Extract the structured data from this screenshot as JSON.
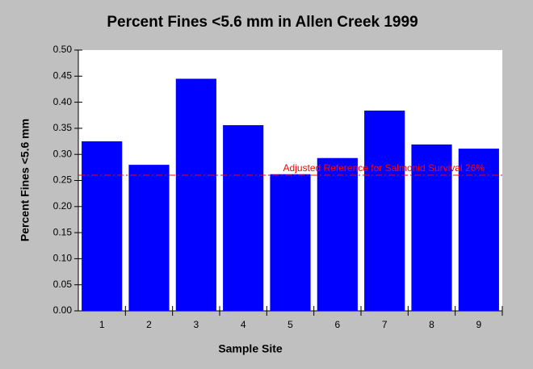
{
  "chart_data": {
    "type": "bar",
    "title": "Percent Fines <5.6 mm in Allen Creek 1999",
    "x_label": "Sample Site",
    "y_label": "Percent Fines <5.6 mm",
    "categories": [
      "1",
      "2",
      "3",
      "4",
      "5",
      "6",
      "7",
      "8",
      "9"
    ],
    "values": [
      0.325,
      0.28,
      0.445,
      0.356,
      0.262,
      0.293,
      0.384,
      0.319,
      0.311
    ],
    "color": "#0000ff",
    "ylim": [
      0,
      0.5
    ],
    "yticks": [
      {
        "value": 0,
        "label": "0.00"
      },
      {
        "value": 0.05,
        "label": "0.05"
      },
      {
        "value": 0.1,
        "label": "0.10"
      },
      {
        "value": 0.15,
        "label": "0.15"
      },
      {
        "value": 0.2,
        "label": "0.20"
      },
      {
        "value": 0.25,
        "label": "0.25"
      },
      {
        "value": 0.3,
        "label": "0.30"
      },
      {
        "value": 0.35,
        "label": "0.35"
      },
      {
        "value": 0.4,
        "label": "0.40"
      },
      {
        "value": 0.45,
        "label": "0.45"
      },
      {
        "value": 0.5,
        "label": "0.50"
      }
    ],
    "reference_line": {
      "value": 0.26,
      "label": "Adjusted Reference for Salmonid Survival 26%",
      "color": "#ff0000"
    }
  }
}
